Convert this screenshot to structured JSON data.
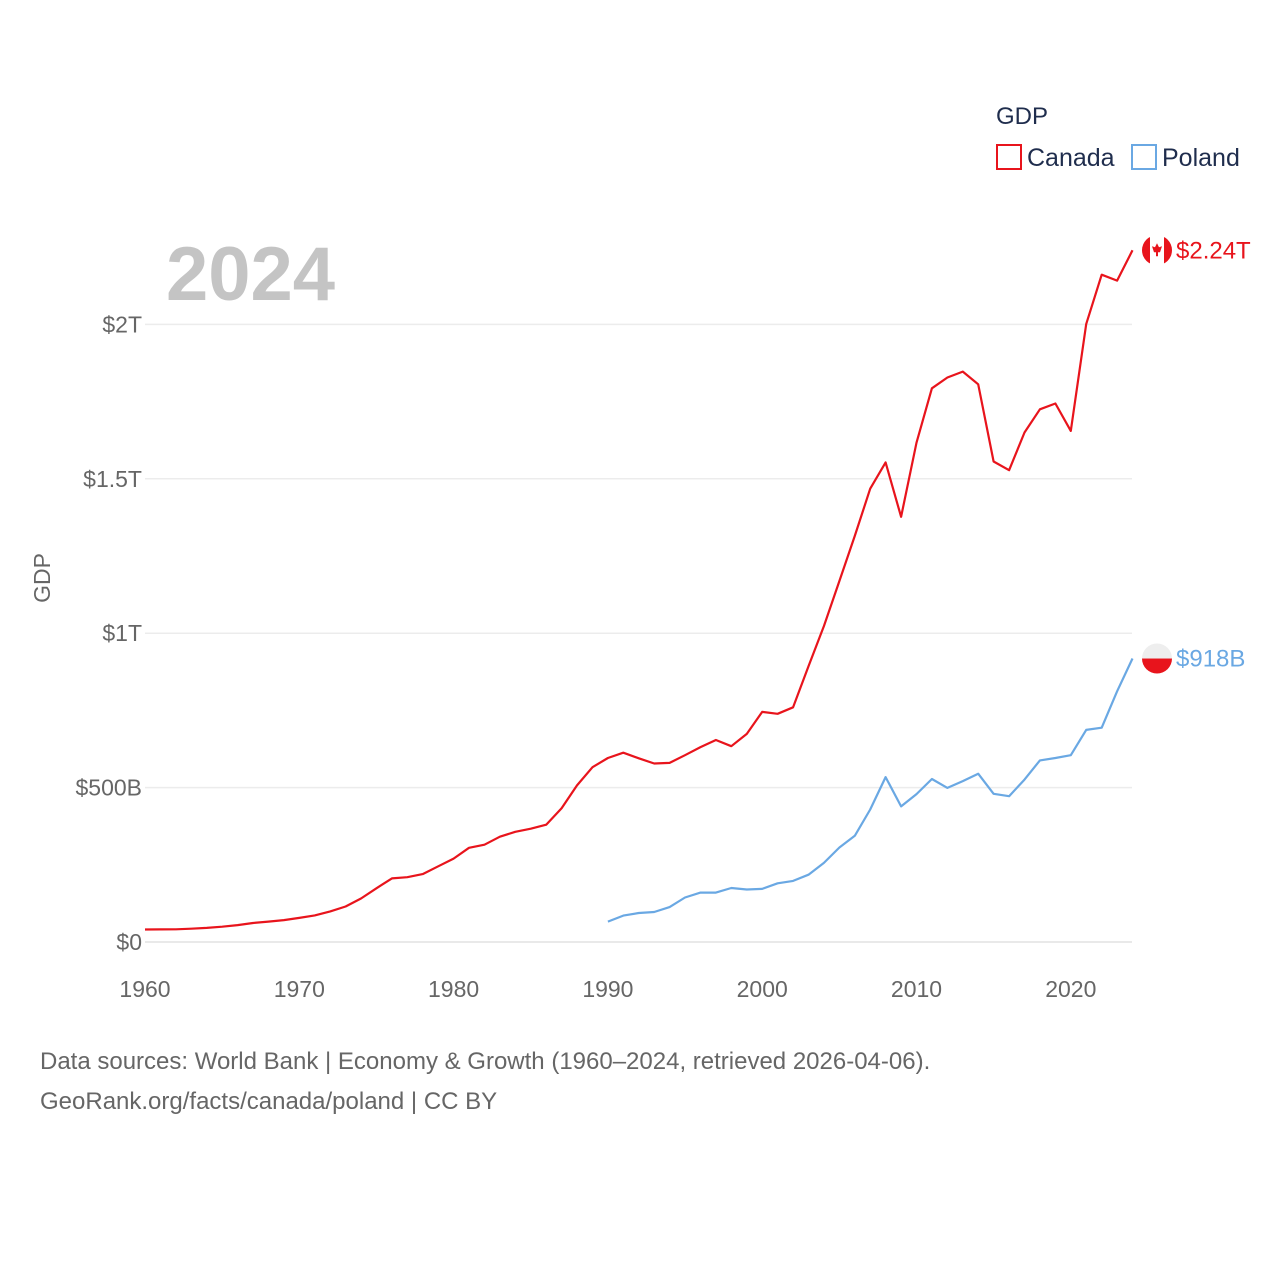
{
  "chart_data": {
    "type": "line",
    "title": "2024",
    "ylabel": "GDP",
    "legend_title": "GDP",
    "xlim": [
      1960,
      2024
    ],
    "ylim": [
      0,
      2300000000000
    ],
    "x_ticks": [
      {
        "value": 1960,
        "label": "1960"
      },
      {
        "value": 1970,
        "label": "1970"
      },
      {
        "value": 1980,
        "label": "1980"
      },
      {
        "value": 1990,
        "label": "1990"
      },
      {
        "value": 2000,
        "label": "2000"
      },
      {
        "value": 2010,
        "label": "2010"
      },
      {
        "value": 2020,
        "label": "2020"
      }
    ],
    "y_ticks": [
      {
        "value": 0,
        "label": "$0"
      },
      {
        "value": 500000000000,
        "label": "$500B"
      },
      {
        "value": 1000000000000,
        "label": "$1T"
      },
      {
        "value": 1500000000000,
        "label": "$1.5T"
      },
      {
        "value": 2000000000000,
        "label": "$2T"
      }
    ],
    "series": [
      {
        "name": "Canada",
        "color": "#e8141c",
        "end_label": "$2.24T",
        "icon": "canada-flag-icon",
        "start_year": 1960,
        "values_billions": [
          40.5,
          40.8,
          41.1,
          43.0,
          45.6,
          49.7,
          54.8,
          61.5,
          66.0,
          71.0,
          78.0,
          86.0,
          99.0,
          115.0,
          141.0,
          174.0,
          206.0,
          210.0,
          220.0,
          245.0,
          270.0,
          305.0,
          315.0,
          341.0,
          357.0,
          367.0,
          380.0,
          433.0,
          507.0,
          566.0,
          596.0,
          613.0,
          595.0,
          578.0,
          580.0,
          605.0,
          631.0,
          654.0,
          634.0,
          674.0,
          745.0,
          739.0,
          760.0,
          893.0,
          1023.0,
          1169.0,
          1315.0,
          1468.0,
          1553.0,
          1377.0,
          1617.0,
          1793.0,
          1828.0,
          1847.0,
          1806.0,
          1556.0,
          1528.0,
          1650.0,
          1725.0,
          1744.0,
          1655.0,
          2001.0,
          2161.0,
          2142.0,
          2240.0
        ]
      },
      {
        "name": "Poland",
        "color": "#6aa8e3",
        "end_label": "$918B",
        "icon": "poland-flag-icon",
        "start_year": 1990,
        "values_billions": [
          66.0,
          85.5,
          94.0,
          97.0,
          113.0,
          144.0,
          160.0,
          160.0,
          175.0,
          170.0,
          172.0,
          190.0,
          198.0,
          218.0,
          256.0,
          306.0,
          344.0,
          429.0,
          534.0,
          439.0,
          479.0,
          528.0,
          499.0,
          521.0,
          545.0,
          480.0,
          472.0,
          526.0,
          588.0,
          596.0,
          605.0,
          687.0,
          694.0,
          812.0,
          918.0
        ]
      }
    ]
  },
  "footer": {
    "line1": "Data sources: World Bank | Economy & Growth (1960–2024, retrieved 2026-04-06).",
    "line2": "GeoRank.org/facts/canada/poland | CC BY"
  }
}
